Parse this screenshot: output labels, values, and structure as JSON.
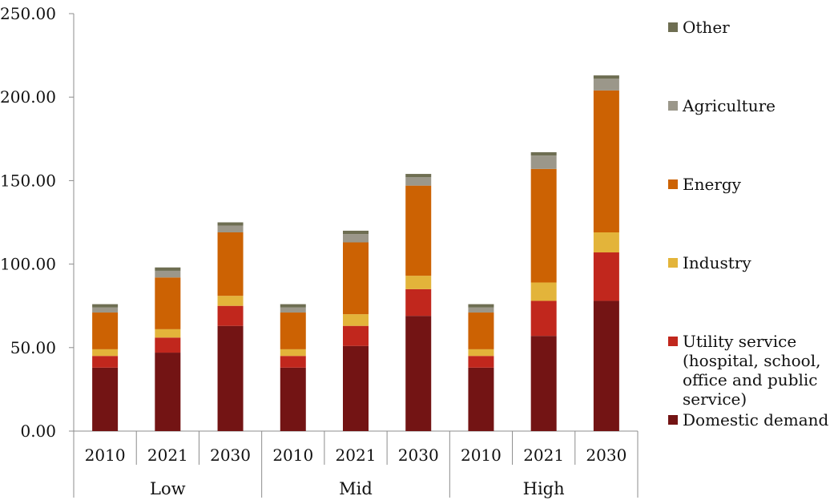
{
  "chart_data": {
    "type": "bar",
    "stacked": true,
    "title": "",
    "xlabel": "",
    "ylabel": "",
    "ylim": [
      0,
      250
    ],
    "yticks": [
      "0.00",
      "50.00",
      "100.00",
      "150.00",
      "200.00",
      "250.00"
    ],
    "grid": false,
    "legend_position": "right",
    "groups": [
      "Low",
      "Mid",
      "High"
    ],
    "categories": [
      "2010",
      "2021",
      "2030",
      "2010",
      "2021",
      "2030",
      "2010",
      "2021",
      "2030"
    ],
    "series": [
      {
        "name": "Domestic demand",
        "color": "#731414",
        "values": [
          38,
          47,
          63,
          38,
          51,
          69,
          38,
          57,
          78
        ]
      },
      {
        "name": "Utility service (hospital, school, office and public service)",
        "color": "#c1271d",
        "values": [
          7,
          9,
          12,
          7,
          12,
          16,
          7,
          21,
          29
        ]
      },
      {
        "name": "Industry",
        "color": "#e3b43a",
        "values": [
          4,
          5,
          6,
          4,
          7,
          8,
          4,
          11,
          12
        ]
      },
      {
        "name": "Energy",
        "color": "#cc6203",
        "values": [
          22,
          31,
          38,
          22,
          43,
          54,
          22,
          68,
          85
        ]
      },
      {
        "name": "Agriculture",
        "color": "#9b978a",
        "values": [
          3,
          4,
          4,
          3,
          5,
          5,
          3,
          8,
          7
        ]
      },
      {
        "name": "Other",
        "color": "#6e6e52",
        "values": [
          2,
          2,
          2,
          2,
          2,
          2,
          2,
          2,
          2
        ]
      }
    ]
  }
}
